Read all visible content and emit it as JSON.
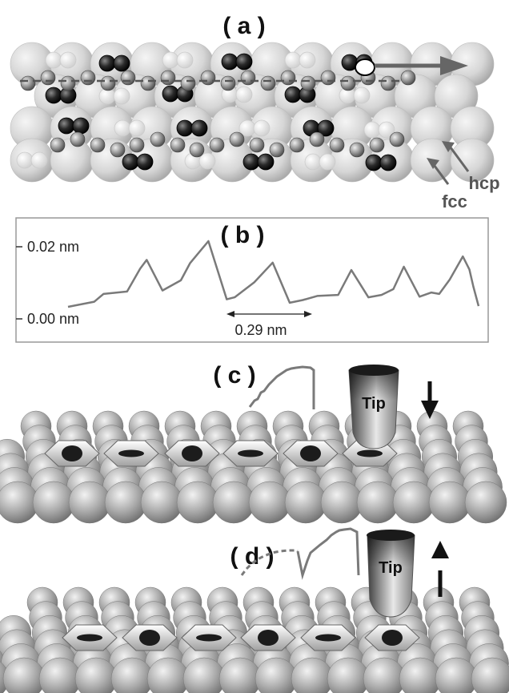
{
  "panel_a": {
    "label": "( a )",
    "site_labels": {
      "hcp": "hcp",
      "fcc": "fcc"
    }
  },
  "panel_b": {
    "label": "( b )",
    "y_tick_top": "0.02 nm",
    "y_tick_bottom": "0.00 nm",
    "spacing_label": "0.29 nm",
    "chart_data": {
      "type": "line",
      "title": "",
      "xlabel": "",
      "ylabel": "",
      "ylim": [
        0.0,
        0.02
      ],
      "yticks": [
        "0.00 nm",
        "0.02 nm"
      ],
      "annotation": "0.29 nm",
      "series": [
        {
          "x": [
            0,
            2.0,
            2.7,
            4.5,
            5.5,
            6.0,
            7.2,
            8.6,
            9.3,
            10.7,
            12.1,
            12.7,
            14.2,
            15.6,
            16.9,
            17.9,
            19.0,
            20.6,
            21.6,
            22.9,
            23.9,
            24.8,
            25.6,
            26.8,
            27.7,
            28.3,
            29.1,
            30.1,
            30.6,
            30.9,
            31.3
          ],
          "y": [
            0.0,
            0.0015,
            0.0038,
            0.0045,
            0.0112,
            0.0138,
            0.0048,
            0.0078,
            0.0128,
            0.0193,
            0.0022,
            0.0028,
            0.0072,
            0.013,
            0.0012,
            0.002,
            0.0032,
            0.0035,
            0.0108,
            0.0028,
            0.0035,
            0.0052,
            0.0118,
            0.003,
            0.0042,
            0.0038,
            0.008,
            0.0148,
            0.011,
            0.006,
            0.0002
          ]
        }
      ]
    }
  },
  "panel_c": {
    "label": "( c )",
    "tip_label": "Tip"
  },
  "panel_d": {
    "label": "( d )",
    "tip_label": "Tip"
  }
}
